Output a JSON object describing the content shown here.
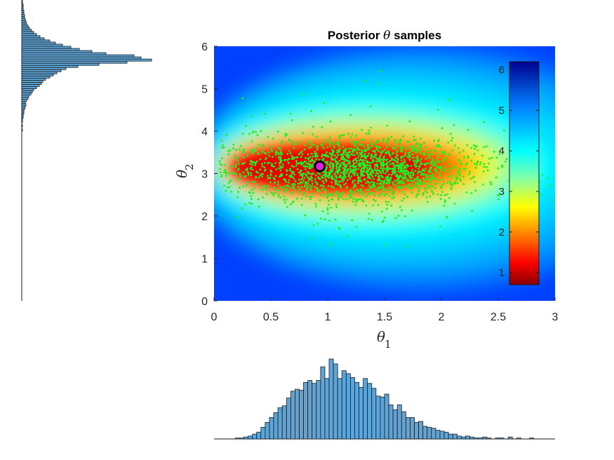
{
  "chart_data": [
    {
      "type": "heatmap",
      "name": "posterior-density",
      "title": "Posterior θ samples",
      "title_prefix": "Posterior ",
      "title_symbol": "θ",
      "title_suffix": " samples",
      "xlabel": "θ1",
      "xlabel_symbol": "θ",
      "xlabel_subscript": "1",
      "ylabel": "θ2",
      "ylabel_symbol": "θ",
      "ylabel_subscript": "2",
      "xlim": [
        0,
        3
      ],
      "ylim": [
        0,
        6
      ],
      "x_ticks": [
        "0",
        "0.5",
        "1",
        "1.5",
        "2",
        "2.5",
        "3"
      ],
      "x_tick_values": [
        0,
        0.5,
        1,
        1.5,
        2,
        2.5,
        3
      ],
      "y_ticks": [
        "0",
        "1",
        "2",
        "3",
        "4",
        "5",
        "6"
      ],
      "y_tick_values": [
        0,
        1,
        2,
        3,
        4,
        5,
        6
      ],
      "colormap": "jet (reversed)",
      "colorbar": {
        "range": [
          0.7,
          6.2
        ],
        "ticks": [
          "1",
          "2",
          "3",
          "4",
          "5",
          "6"
        ],
        "tick_values": [
          1,
          2,
          3,
          4,
          5,
          6
        ],
        "placement": "inside-right"
      },
      "density_mode": {
        "theta1": 0.9,
        "theta2": 3.15
      },
      "samples": {
        "color": "#22ee22",
        "center": [
          1.25,
          3.1
        ],
        "spread": [
          0.5,
          0.35
        ],
        "count": 2000
      },
      "marker": {
        "theta1": 0.93,
        "theta2": 3.17,
        "fill": "#e020e0",
        "edge": "#000000"
      }
    },
    {
      "type": "bar",
      "name": "theta1-marginal-histogram",
      "orientation": "vertical",
      "xlim": [
        0,
        3
      ],
      "bin_width": 0.0375,
      "bar_color": "#5da5d8",
      "edge_color": "#1a1a1a",
      "values": [
        0,
        0,
        0,
        0,
        0,
        1,
        1,
        2,
        3,
        5,
        7,
        12,
        17,
        22,
        27,
        32,
        34,
        42,
        49,
        51,
        50,
        58,
        60,
        57,
        60,
        74,
        62,
        82,
        77,
        62,
        70,
        67,
        63,
        58,
        53,
        62,
        57,
        52,
        44,
        43,
        46,
        35,
        30,
        35,
        28,
        22,
        22,
        17,
        18,
        13,
        12,
        11,
        9,
        8,
        7,
        5,
        5,
        3,
        2,
        3,
        2,
        1,
        1,
        2,
        1,
        0,
        1,
        1,
        0,
        2,
        0,
        1,
        0,
        0,
        1,
        0,
        0,
        0,
        0,
        0
      ]
    },
    {
      "type": "bar",
      "name": "theta2-marginal-histogram",
      "orientation": "horizontal",
      "ylim": [
        0,
        6
      ],
      "bin_width": 0.05,
      "bar_color": "#5da5d8",
      "edge_color": "#1a1a1a",
      "values": [
        0,
        0,
        0,
        0,
        0,
        0,
        0,
        0,
        0,
        0,
        0,
        0,
        0,
        0,
        0,
        0,
        0,
        0,
        0,
        0,
        0,
        0,
        0,
        0,
        0,
        0,
        0,
        0,
        0,
        0,
        0,
        0,
        0,
        0,
        0,
        0,
        0,
        0,
        0,
        0,
        0,
        0,
        0,
        0,
        0,
        0,
        0,
        0,
        0,
        0,
        0,
        0,
        0,
        0,
        0,
        0,
        0,
        0,
        0,
        0,
        0,
        0,
        0,
        0,
        0,
        0,
        0,
        0,
        0,
        0,
        0,
        0,
        0,
        0,
        0,
        0,
        0,
        0,
        0,
        0,
        1,
        0,
        1,
        0,
        1,
        1,
        2,
        2,
        3,
        3,
        4,
        5,
        6,
        5,
        7,
        9,
        10,
        13,
        15,
        17,
        21,
        25,
        28,
        30,
        34,
        40,
        45,
        50,
        56,
        63,
        80,
        110,
        150,
        185,
        170,
        160,
        120,
        100,
        82,
        70,
        58,
        48,
        40,
        32,
        26,
        21,
        17,
        14,
        11,
        9,
        7,
        6,
        5,
        4,
        4,
        3,
        3,
        2,
        2,
        2,
        1,
        1,
        1,
        1,
        1,
        0,
        1,
        0,
        0,
        0,
        0,
        0,
        0,
        0,
        0,
        0,
        0,
        0,
        0,
        0,
        0,
        0,
        0,
        0,
        0,
        0,
        0,
        0,
        0,
        0,
        0,
        0,
        0,
        0,
        0,
        0,
        0,
        0,
        0,
        0,
        0,
        0,
        0,
        0,
        0,
        0,
        0,
        0,
        0,
        0,
        0,
        0,
        0,
        0,
        0,
        0,
        0,
        0,
        0,
        0,
        0,
        0,
        0,
        0,
        0,
        0,
        0,
        0,
        0,
        0,
        0,
        0,
        0,
        0,
        0,
        0,
        0,
        0,
        0,
        0,
        0,
        0,
        0,
        0,
        0,
        0,
        0,
        0
      ]
    }
  ]
}
